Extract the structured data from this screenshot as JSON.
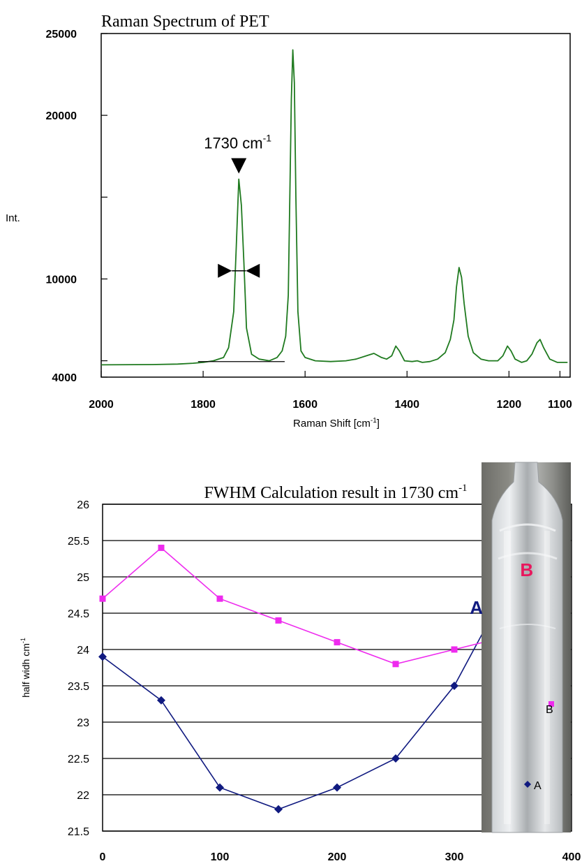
{
  "chart_data": [
    {
      "type": "line",
      "title": "Raman Spectrum of PET",
      "xlabel": "Raman Shift [cm-1]",
      "xlabel_base": "Raman Shift [cm",
      "xlabel_sup": "-1",
      "xlabel_end": "]",
      "ylabel": "Int.",
      "x_reversed": true,
      "xlim": [
        2000,
        1080
      ],
      "ylim": [
        4000,
        25000
      ],
      "x_tick_labels": [
        "2000",
        "1800",
        "1600",
        "1400",
        "1200",
        "1100"
      ],
      "x_tick_values": [
        2000,
        1800,
        1600,
        1400,
        1200,
        1100
      ],
      "y_tick_labels": [
        "4000",
        "10000",
        "20000",
        "25000"
      ],
      "y_tick_values": [
        4000,
        10000,
        20000,
        25000
      ],
      "y_minor_ticks": [
        5000,
        15000
      ],
      "grid": false,
      "annotation": {
        "text": "1730 cm-1",
        "text_base": "1730 cm",
        "text_sup": "-1",
        "peak_x": 1730,
        "peak_y": 16100,
        "fwhm_y": 10500
      },
      "series": [
        {
          "color": "#1f7a1f",
          "points": [
            [
              2000,
              4750
            ],
            [
              1900,
              4770
            ],
            [
              1850,
              4800
            ],
            [
              1820,
              4850
            ],
            [
              1800,
              4900
            ],
            [
              1780,
              5000
            ],
            [
              1760,
              5200
            ],
            [
              1750,
              5800
            ],
            [
              1740,
              8000
            ],
            [
              1735,
              12000
            ],
            [
              1730,
              16100
            ],
            [
              1725,
              14500
            ],
            [
              1720,
              11000
            ],
            [
              1715,
              7000
            ],
            [
              1705,
              5400
            ],
            [
              1690,
              5100
            ],
            [
              1670,
              5000
            ],
            [
              1655,
              5200
            ],
            [
              1645,
              5600
            ],
            [
              1638,
              6500
            ],
            [
              1633,
              9000
            ],
            [
              1630,
              15000
            ],
            [
              1627,
              21000
            ],
            [
              1624,
              24000
            ],
            [
              1621,
              22000
            ],
            [
              1618,
              15000
            ],
            [
              1614,
              8000
            ],
            [
              1608,
              5600
            ],
            [
              1600,
              5200
            ],
            [
              1580,
              5000
            ],
            [
              1550,
              4950
            ],
            [
              1520,
              5000
            ],
            [
              1500,
              5100
            ],
            [
              1480,
              5300
            ],
            [
              1465,
              5450
            ],
            [
              1450,
              5200
            ],
            [
              1440,
              5100
            ],
            [
              1430,
              5300
            ],
            [
              1422,
              5900
            ],
            [
              1415,
              5600
            ],
            [
              1405,
              5000
            ],
            [
              1390,
              4950
            ],
            [
              1380,
              5000
            ],
            [
              1370,
              4900
            ],
            [
              1355,
              4950
            ],
            [
              1340,
              5100
            ],
            [
              1325,
              5500
            ],
            [
              1315,
              6300
            ],
            [
              1308,
              7500
            ],
            [
              1303,
              9500
            ],
            [
              1298,
              10700
            ],
            [
              1293,
              10100
            ],
            [
              1288,
              8500
            ],
            [
              1280,
              6500
            ],
            [
              1270,
              5500
            ],
            [
              1255,
              5100
            ],
            [
              1240,
              5000
            ],
            [
              1222,
              5000
            ],
            [
              1212,
              5300
            ],
            [
              1203,
              5900
            ],
            [
              1196,
              5600
            ],
            [
              1188,
              5100
            ],
            [
              1175,
              4900
            ],
            [
              1165,
              5000
            ],
            [
              1155,
              5400
            ],
            [
              1145,
              6100
            ],
            [
              1139,
              6300
            ],
            [
              1132,
              5800
            ],
            [
              1120,
              5100
            ],
            [
              1105,
              4900
            ],
            [
              1085,
              4900
            ]
          ]
        }
      ]
    },
    {
      "type": "line",
      "title": "FWHM Calculation result in 1730 cm-1",
      "title_base": "FWHM Calculation result in 1730 cm",
      "title_sup": "-1",
      "xlabel": "",
      "ylabel": "half widh cm-1",
      "ylabel_base": "half widh cm",
      "ylabel_sup": "-1",
      "xlim": [
        0,
        400
      ],
      "ylim": [
        21.5,
        26
      ],
      "x_tick_labels": [
        "0",
        "100",
        "200",
        "300",
        "400"
      ],
      "x_tick_values": [
        0,
        100,
        200,
        300,
        400
      ],
      "y_tick_labels": [
        "21.5",
        "22",
        "22.5",
        "23",
        "23.5",
        "24",
        "24.5",
        "25",
        "25.5",
        "26"
      ],
      "y_tick_values": [
        21.5,
        22,
        22.5,
        23,
        23.5,
        24,
        24.5,
        25,
        25.5,
        26
      ],
      "grid": true,
      "series": [
        {
          "name": "A",
          "color": "#101a80",
          "marker": "diamond",
          "x": [
            0,
            50,
            100,
            150,
            200,
            250,
            300,
            340
          ],
          "y": [
            23.9,
            23.3,
            22.1,
            21.8,
            22.1,
            22.5,
            23.5,
            24.7
          ]
        },
        {
          "name": "B",
          "color": "#ee2bee",
          "label_color": "#e8175d",
          "marker": "square",
          "x": [
            0,
            50,
            100,
            150,
            200,
            250,
            300,
            350,
            380
          ],
          "y": [
            24.7,
            25.4,
            24.7,
            24.4,
            24.1,
            23.8,
            24.0,
            24.2,
            25.2
          ]
        }
      ],
      "inset": {
        "labels": [
          "A",
          "B"
        ],
        "marker_colors": [
          "#101a80",
          "#ee2bee"
        ]
      }
    }
  ]
}
